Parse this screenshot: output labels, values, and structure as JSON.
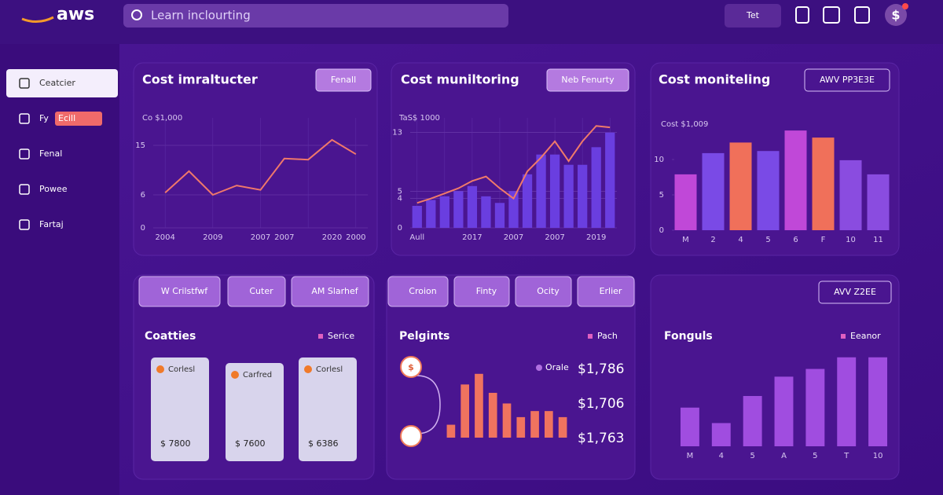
{
  "header": {
    "logo": "aws",
    "search": "Learn inclourting",
    "menu": "Tet",
    "avatar": "$"
  },
  "sidebar": {
    "items": [
      {
        "label": "Ceatcier"
      },
      {
        "label": "Fy",
        "badge": "Ecill"
      },
      {
        "label": "Fenal"
      },
      {
        "label": "Powee"
      },
      {
        "label": "Fartaj"
      }
    ]
  },
  "chart_data": [
    {
      "type": "line",
      "title": "Cost imraltucter",
      "button": "Fenall",
      "ylabel": "Co $1,000",
      "categories": [
        "2004",
        null,
        "2009",
        null,
        "2007",
        "2007",
        null,
        "2020",
        "2000"
      ],
      "values": [
        6.4,
        10.3,
        6,
        7.7,
        6.9,
        12.6,
        12.4,
        16,
        13.4
      ],
      "color": "#f0786a",
      "ylim": [
        0,
        20
      ],
      "yticks": [
        0,
        6,
        15
      ],
      "grid": true
    },
    {
      "type": "combo",
      "title": "Cost muniltoring",
      "button": "Neb Fenurty",
      "ylabel": "TaS$ 1000",
      "categories": [
        "Aull",
        null,
        null,
        null,
        "2017",
        null,
        null,
        "2007",
        null,
        null,
        "2007",
        null,
        null,
        "2019",
        null
      ],
      "series": [
        {
          "type": "bar",
          "color": "#6a3ee0",
          "values": [
            3,
            3.8,
            4.3,
            5,
            5.7,
            4.3,
            3.4,
            5,
            7.3,
            10,
            10,
            8.6,
            8.6,
            11,
            13
          ]
        },
        {
          "type": "line",
          "color": "#f07a6a",
          "values": [
            3.4,
            4,
            4.7,
            5.4,
            6.4,
            7,
            5.4,
            4,
            7.7,
            9.6,
            11.8,
            9.1,
            11.8,
            13.9,
            13.7
          ]
        }
      ],
      "ylim": [
        0,
        15
      ],
      "yticks": [
        0,
        4,
        5,
        13
      ],
      "grid": true
    },
    {
      "type": "bar",
      "title": "Cost moniteling",
      "button": "AWV PP3E3E",
      "ylabel": "Cost $1,009",
      "categories": [
        "M",
        "2",
        "4",
        "5",
        "6",
        "F",
        "10",
        "11"
      ],
      "values": [
        7.9,
        10.9,
        12.4,
        11.2,
        14.1,
        13.1,
        9.9,
        7.9
      ],
      "colors": [
        "#c048d8",
        "#7a4ae6",
        "#f0705a",
        "#7a4ae6",
        "#c048d8",
        "#f0705a",
        "#8a4ce0",
        "#8a4ce0"
      ],
      "ylim": [
        0,
        15
      ],
      "yticks": [
        0,
        5,
        10
      ]
    },
    {
      "type": "bar",
      "title": "Pelgints",
      "values": [
        17,
        70,
        84,
        59,
        45,
        27,
        35,
        35,
        27
      ],
      "color": "#f0735f",
      "ylim": [
        0,
        90
      ]
    },
    {
      "type": "bar",
      "title": "Fonguls",
      "button": "AVV Z2EE",
      "categories": [
        "M",
        "4",
        "5",
        "A",
        "5",
        "T",
        "10"
      ],
      "values": [
        50,
        30,
        65,
        90,
        100,
        115,
        115
      ],
      "color": "#a04de0",
      "ylim": [
        0,
        130
      ]
    }
  ],
  "panels": [
    {
      "buttons": [
        "W Crilstfwf",
        "Cuter",
        "AM Slarhef"
      ],
      "heading": "Coatties",
      "legend": "Serice",
      "cards": [
        {
          "label": "Corlesl",
          "amount": "$ 7800"
        },
        {
          "label": "Carfred",
          "amount": "$ 7600"
        },
        {
          "label": "Corlesl",
          "amount": "$ 6386"
        }
      ]
    },
    {
      "buttons": [
        "Croion",
        "Finty",
        "Ocity",
        "Erlier"
      ],
      "legend": "Pach",
      "stat_label": "Orale",
      "stats": [
        "$1,786",
        "$1,706",
        "$1,763"
      ]
    },
    {
      "legend": "Eeanor"
    }
  ]
}
